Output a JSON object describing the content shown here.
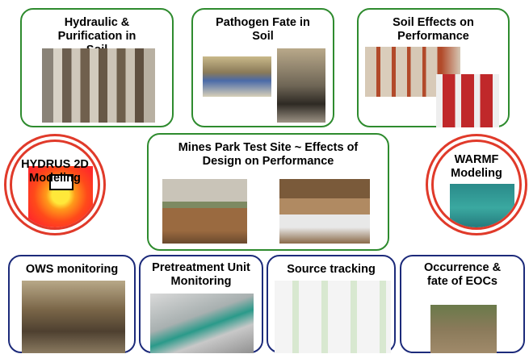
{
  "nodes": [
    {
      "label": "Hydraulic & Purification in Soil"
    },
    {
      "label": "Pathogen Fate in Soil"
    },
    {
      "label": "Soil Effects on Performance"
    },
    {
      "label": "HYDRUS 2D Modeling"
    },
    {
      "label": "Mines Park Test Site ~ Effects of Design on Performance"
    },
    {
      "label": "WARMF Modeling"
    },
    {
      "label": "OWS monitoring"
    },
    {
      "label": "Pretreatment Unit Monitoring"
    },
    {
      "label": "Source tracking"
    },
    {
      "label": "Occurrence & fate of EOCs"
    }
  ]
}
